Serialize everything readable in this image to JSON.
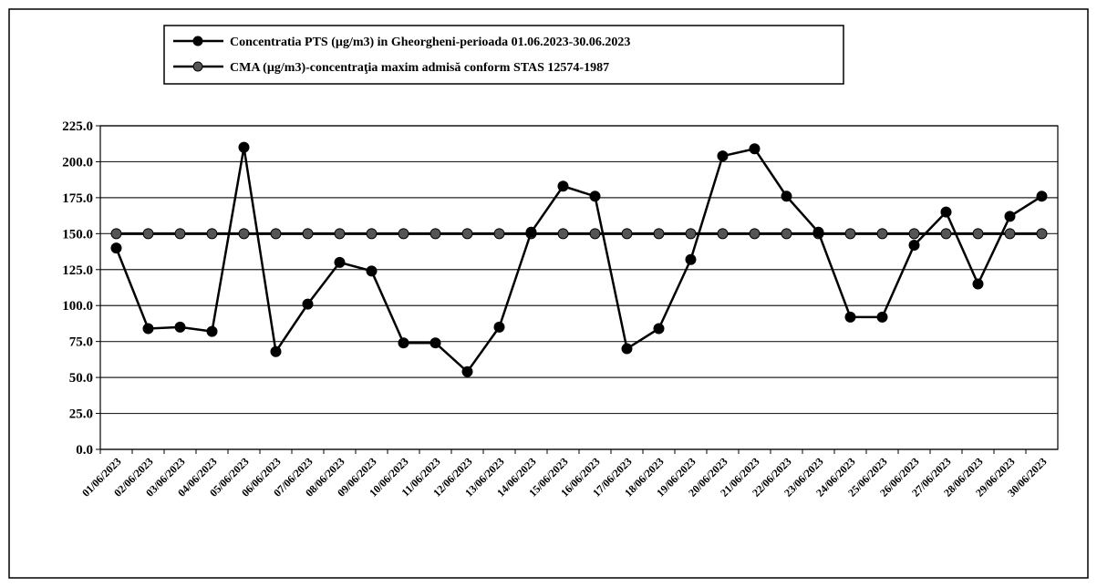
{
  "chart_data": {
    "type": "line",
    "categories": [
      "01/06/2023",
      "02/06/2023",
      "03/06/2023",
      "04/06/2023",
      "05/06/2023",
      "06/06/2023",
      "07/06/2023",
      "08/06/2023",
      "09/06/2023",
      "10/06/2023",
      "11/06/2023",
      "12/06/2023",
      "13/06/2023",
      "14/06/2023",
      "15/06/2023",
      "16/06/2023",
      "17/06/2023",
      "18/06/2023",
      "19/06/2023",
      "20/06/2023",
      "21/06/2023",
      "22/06/2023",
      "23/06/2023",
      "24/06/2023",
      "25/06/2023",
      "26/06/2023",
      "27/06/2023",
      "28/06/2023",
      "29/06/2023",
      "30/06/2023"
    ],
    "series": [
      {
        "name": "Concentratia PTS (µg/m3) in Gheorgheni-perioada 01.06.2023-30.06.2023",
        "color": "#000000",
        "values": [
          140,
          84,
          85,
          82,
          210,
          68,
          101,
          130,
          124,
          74,
          74,
          54,
          85,
          151,
          183,
          176,
          70,
          84,
          132,
          204,
          209,
          176,
          151,
          92,
          92,
          142,
          165,
          115,
          162,
          176
        ]
      },
      {
        "name": "CMA (µg/m3)-concentraţia maxim admisă conform STAS 12574-1987",
        "color": "#000000",
        "values": [
          150,
          150,
          150,
          150,
          150,
          150,
          150,
          150,
          150,
          150,
          150,
          150,
          150,
          150,
          150,
          150,
          150,
          150,
          150,
          150,
          150,
          150,
          150,
          150,
          150,
          150,
          150,
          150,
          150,
          150
        ]
      }
    ],
    "ylim": [
      0,
      225
    ],
    "yticks": [
      {
        "value": 0,
        "label": "0.0"
      },
      {
        "value": 25,
        "label": "25.0"
      },
      {
        "value": 50,
        "label": "50.0"
      },
      {
        "value": 75,
        "label": "75.0"
      },
      {
        "value": 100,
        "label": "100.0"
      },
      {
        "value": 125,
        "label": "125.0"
      },
      {
        "value": 150,
        "label": "150.0"
      },
      {
        "value": 175,
        "label": "175.0"
      },
      {
        "value": 200,
        "label": "200.0"
      },
      {
        "value": 225,
        "label": "225.0"
      }
    ],
    "grid": true
  }
}
